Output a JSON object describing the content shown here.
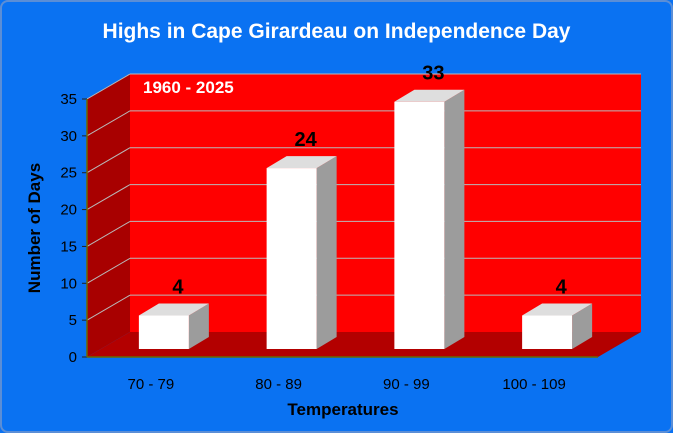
{
  "chart_data": {
    "type": "bar",
    "title": "Highs in Cape Girardeau on Independence Day",
    "annotation": "1960 - 2025",
    "xlabel": "Temperatures",
    "ylabel": "Number of Days",
    "categories": [
      "70 - 79",
      "80 - 89",
      "90 - 99",
      "100 - 109"
    ],
    "values": [
      4,
      24,
      33,
      4
    ],
    "ylim": [
      0,
      35
    ],
    "yticks": [
      0,
      5,
      10,
      15,
      20,
      25,
      30,
      35
    ],
    "grid": true,
    "data_labels": true,
    "style": "3d",
    "colors": {
      "background": "#0a72f2",
      "back_wall": "#ff0000",
      "side_wall": "#a80000",
      "floor": "#b30000",
      "bar_front": "#ffffff",
      "bar_side": "#9c9c9c",
      "bar_top": "#dedede",
      "title_text": "#ffffff",
      "gridline": "#b9b9b9"
    }
  }
}
